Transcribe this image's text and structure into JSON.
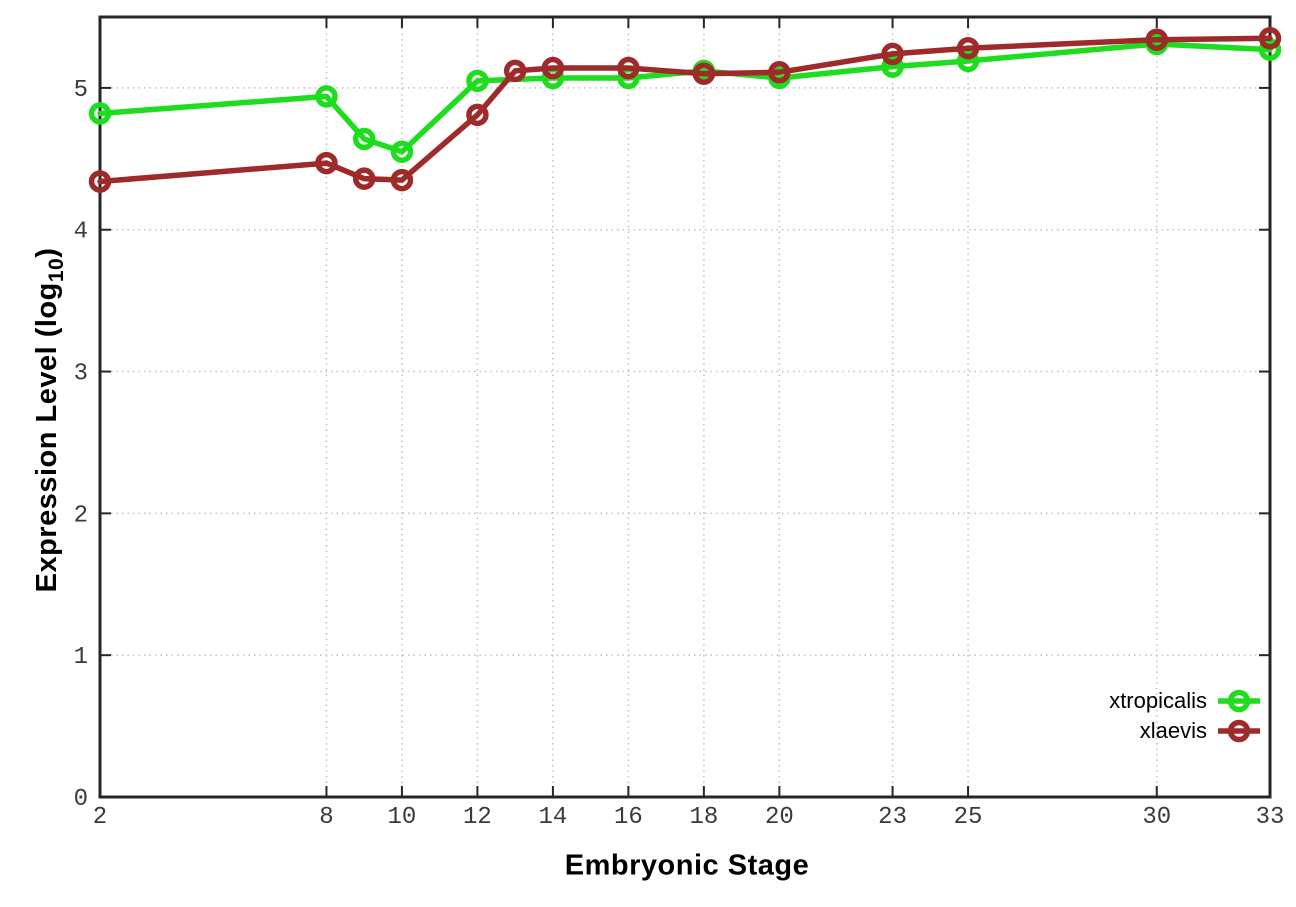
{
  "figure": {
    "background": "#ffffff",
    "frame_color": "#262626",
    "grid_color": "#c2c2c2",
    "tick_label_color": "#3a3a3a"
  },
  "chart_data": {
    "type": "line",
    "title": "",
    "xlabel": "Embryonic Stage",
    "ylabel": "Expression Level (log10)",
    "ylabel_parts": {
      "prefix": "Expression Level (log",
      "sub": "10",
      "suffix": ")"
    },
    "xlim": [
      2,
      33
    ],
    "ylim": [
      0,
      5.5
    ],
    "xticks": [
      2,
      8,
      10,
      12,
      14,
      16,
      18,
      20,
      23,
      25,
      30,
      33
    ],
    "yticks": [
      0,
      1,
      2,
      3,
      4,
      5
    ],
    "grid": true,
    "legend_position": "inside-right-lower",
    "series": [
      {
        "name": "xtropicalis",
        "color": "#1edc1e",
        "marker": "open-circle",
        "x": [
          2,
          8,
          9,
          10,
          12,
          14,
          16,
          18,
          20,
          23,
          25,
          30,
          33
        ],
        "y": [
          4.82,
          4.94,
          4.64,
          4.55,
          5.05,
          5.07,
          5.07,
          5.12,
          5.07,
          5.15,
          5.19,
          5.31,
          5.27
        ]
      },
      {
        "name": "xlaevis",
        "color": "#9e2a2a",
        "marker": "open-circle",
        "x": [
          2,
          8,
          9,
          10,
          12,
          13,
          14,
          16,
          18,
          20,
          23,
          25,
          30,
          33
        ],
        "y": [
          4.34,
          4.47,
          4.36,
          4.35,
          4.81,
          5.12,
          5.14,
          5.14,
          5.1,
          5.11,
          5.24,
          5.28,
          5.34,
          5.35
        ]
      }
    ]
  }
}
